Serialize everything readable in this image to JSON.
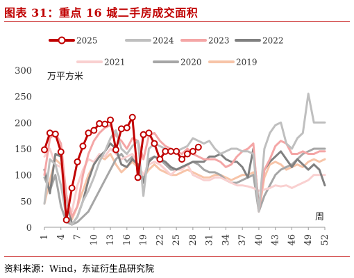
{
  "header": {
    "title": "图表 31：重点 16 城二手房成交面积"
  },
  "footer": {
    "source": "资料来源：Wind，东证衍生品研究院"
  },
  "chart_data": {
    "type": "line",
    "ylabel": "万平方米",
    "xlabel": "周",
    "ylim": [
      0,
      300
    ],
    "yticks": [
      0,
      50,
      100,
      150,
      200,
      250,
      300
    ],
    "xlim": [
      1,
      52
    ],
    "xticks": [
      1,
      4,
      7,
      10,
      13,
      16,
      19,
      22,
      25,
      28,
      31,
      34,
      37,
      40,
      43,
      46,
      49,
      52
    ],
    "legend_position": "top",
    "grid": false,
    "series": [
      {
        "name": "2025",
        "color": "#c00000",
        "width": 3,
        "markers": true,
        "values": [
          148,
          180,
          178,
          144,
          14,
          75,
          125,
          155,
          180,
          185,
          198,
          197,
          205,
          148,
          188,
          190,
          210,
          95,
          177,
          180,
          160,
          130,
          145,
          145,
          145,
          130,
          140,
          145,
          153
        ]
      },
      {
        "name": "2024",
        "color": "#bfbfbf",
        "width": 3,
        "markers": false,
        "values": [
          45,
          130,
          120,
          80,
          20,
          5,
          20,
          50,
          70,
          95,
          125,
          145,
          170,
          185,
          150,
          140,
          155,
          165,
          60,
          150,
          160,
          155,
          150,
          140,
          145,
          150,
          155,
          170,
          165,
          160,
          165,
          150,
          140,
          145,
          150,
          150,
          145,
          145,
          140,
          30,
          150,
          180,
          195,
          200,
          160,
          150,
          170,
          180,
          255,
          200,
          200,
          200
        ]
      },
      {
        "name": "2023",
        "color": "#f4a6a6",
        "width": 3,
        "markers": false,
        "values": [
          100,
          170,
          180,
          160,
          60,
          20,
          40,
          100,
          140,
          165,
          180,
          190,
          195,
          175,
          165,
          150,
          170,
          165,
          130,
          175,
          180,
          165,
          155,
          150,
          145,
          140,
          150,
          140,
          135,
          130,
          130,
          130,
          125,
          115,
          120,
          135,
          145,
          150,
          160,
          30,
          110,
          130,
          155,
          165,
          160,
          140,
          140,
          145,
          140,
          140,
          145,
          145
        ]
      },
      {
        "name": "2022",
        "color": "#808080",
        "width": 3,
        "markers": false,
        "values": [
          110,
          65,
          140,
          135,
          60,
          5,
          20,
          50,
          90,
          120,
          135,
          145,
          160,
          150,
          120,
          115,
          130,
          120,
          85,
          125,
          135,
          130,
          125,
          115,
          110,
          115,
          120,
          125,
          125,
          125,
          135,
          135,
          140,
          130,
          125,
          125,
          115,
          95,
          150,
          40,
          110,
          125,
          135,
          145,
          130,
          115,
          130,
          120,
          110,
          120,
          110,
          80
        ]
      },
      {
        "name": "2021",
        "color": "#f9d0d0",
        "width": 3,
        "markers": false,
        "values": [
          135,
          150,
          120,
          115,
          50,
          30,
          80,
          110,
          130,
          125,
          140,
          135,
          150,
          140,
          130,
          135,
          140,
          120,
          100,
          120,
          125,
          120,
          110,
          100,
          110,
          110,
          120,
          100,
          95,
          90,
          90,
          95,
          95,
          90,
          85,
          80,
          80,
          78,
          75,
          70,
          72,
          75,
          80,
          78,
          80,
          75,
          80,
          85,
          90,
          100,
          100,
          100
        ]
      },
      {
        "name": "2020",
        "color": "#a6a6a6",
        "width": 3,
        "markers": false,
        "values": [
          95,
          70,
          100,
          40,
          10,
          5,
          10,
          20,
          30,
          50,
          70,
          90,
          110,
          130,
          140,
          125,
          135,
          120,
          90,
          130,
          135,
          130,
          120,
          110,
          110,
          115,
          120,
          125,
          120,
          110,
          105,
          105,
          100,
          90,
          85,
          85,
          90,
          95,
          100,
          30,
          60,
          80,
          100,
          110,
          115,
          120,
          130,
          140,
          145,
          150,
          150,
          150
        ]
      },
      {
        "name": "2019",
        "color": "#f7c4a8",
        "width": 3,
        "markers": false,
        "values": [
          45,
          90,
          130,
          120,
          60,
          15,
          40,
          70,
          100,
          120,
          135,
          130,
          140,
          120,
          105,
          115,
          125,
          115,
          95,
          110,
          120,
          110,
          105,
          100,
          100,
          105,
          110,
          105,
          100,
          95,
          95,
          100,
          100,
          95,
          90,
          95,
          100,
          100,
          105,
          30,
          95,
          120,
          125,
          120,
          110,
          115,
          120,
          115,
          125,
          130,
          125,
          130
        ]
      }
    ]
  }
}
